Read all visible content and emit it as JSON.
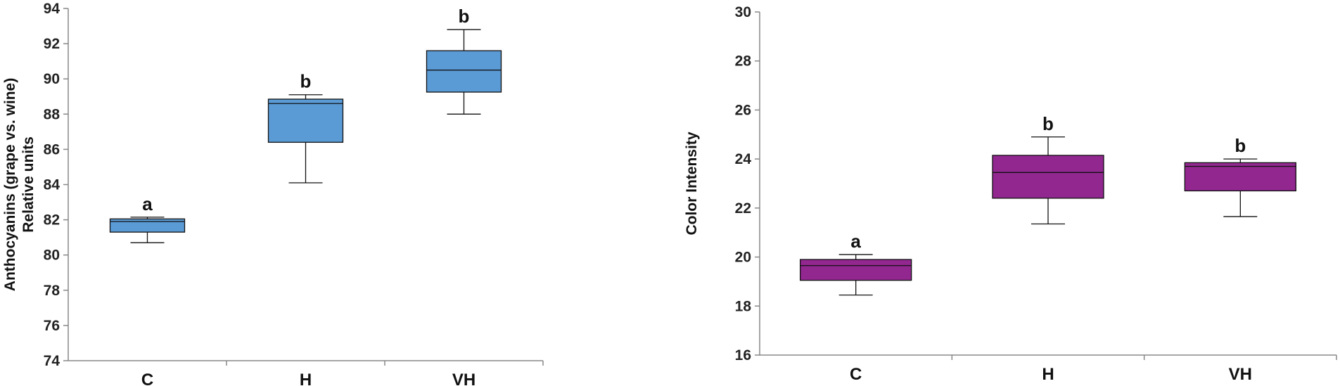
{
  "chart_data": [
    {
      "type": "box",
      "ylabel_lines": [
        "Anthocyanins (grape vs. wine)",
        "Relative units"
      ],
      "ylim": [
        74,
        94
      ],
      "yticks": [
        74,
        76,
        78,
        80,
        82,
        84,
        86,
        88,
        90,
        92,
        94
      ],
      "categories": [
        "C",
        "H",
        "VH"
      ],
      "fill_color": "#5b9bd5",
      "boxes": [
        {
          "category": "C",
          "min": 80.7,
          "q1": 81.3,
          "median": 81.9,
          "q3": 82.05,
          "max": 82.15,
          "sig": "a"
        },
        {
          "category": "H",
          "min": 84.1,
          "q1": 86.4,
          "median": 88.6,
          "q3": 88.85,
          "max": 89.1,
          "sig": "b"
        },
        {
          "category": "VH",
          "min": 88.0,
          "q1": 89.25,
          "median": 90.5,
          "q3": 91.6,
          "max": 92.8,
          "sig": "b"
        }
      ]
    },
    {
      "type": "box",
      "ylabel_lines": [
        "Color Intensity"
      ],
      "ylim": [
        16,
        30
      ],
      "yticks": [
        16,
        18,
        20,
        22,
        24,
        26,
        28,
        30
      ],
      "categories": [
        "C",
        "H",
        "VH"
      ],
      "fill_color": "#92278f",
      "boxes": [
        {
          "category": "C",
          "min": 18.45,
          "q1": 19.05,
          "median": 19.65,
          "q3": 19.9,
          "max": 20.1,
          "sig": "a"
        },
        {
          "category": "H",
          "min": 21.35,
          "q1": 22.4,
          "median": 23.45,
          "q3": 24.15,
          "max": 24.9,
          "sig": "b"
        },
        {
          "category": "VH",
          "min": 21.65,
          "q1": 22.7,
          "median": 23.7,
          "q3": 23.85,
          "max": 24.0,
          "sig": "b"
        }
      ]
    }
  ]
}
